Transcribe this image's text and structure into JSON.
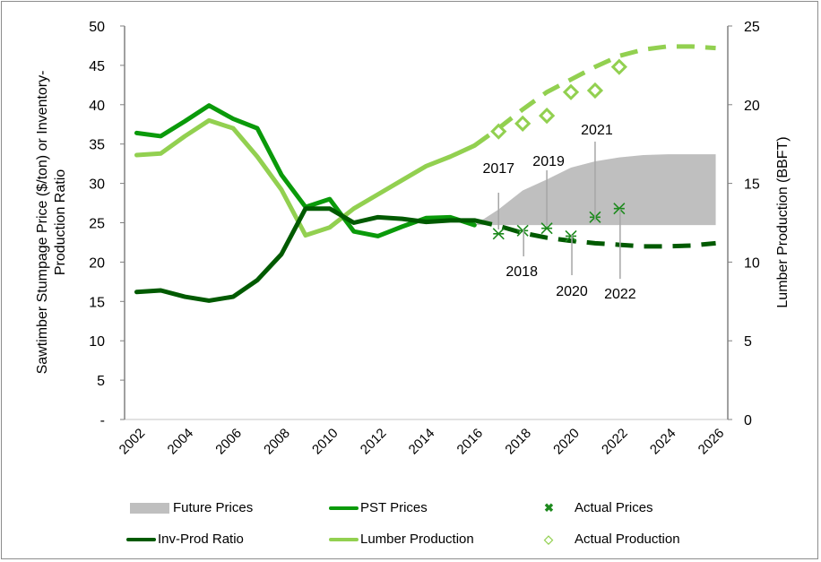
{
  "chart_data": {
    "type": "line",
    "categories": [
      2002,
      2003,
      2004,
      2005,
      2006,
      2007,
      2008,
      2009,
      2010,
      2011,
      2012,
      2013,
      2014,
      2015,
      2016,
      2017,
      2018,
      2019,
      2020,
      2021,
      2022,
      2023,
      2024,
      2025,
      2026
    ],
    "x_tick_labels": [
      "2002",
      "2004",
      "2006",
      "2008",
      "2010",
      "2012",
      "2014",
      "2016",
      "2018",
      "2020",
      "2022",
      "2024",
      "2026"
    ],
    "ylabel": "Sawtimber Stumpage Price ($/ton) or Inventory-Production Ratio",
    "ylabel_lines": [
      "Sawtimber Stumpage Price ($/ton) or Inventory-",
      "Production Ratio"
    ],
    "ylim": [
      0,
      50
    ],
    "y_ticks": [
      "-",
      "5",
      "10",
      "15",
      "20",
      "25",
      "30",
      "35",
      "40",
      "45",
      "50"
    ],
    "y2label": "Lumber Production (BBFT)",
    "y2lim": [
      0,
      25
    ],
    "y2_ticks": [
      "0",
      "5",
      "10",
      "15",
      "20",
      "25"
    ],
    "grid": false,
    "legend_position": "bottom",
    "series": [
      {
        "name": "Future Prices",
        "type": "area",
        "axis": "left",
        "color": "#bfbfbf",
        "x": [
          2016,
          2017,
          2018,
          2019,
          2020,
          2021,
          2022,
          2023,
          2024,
          2025,
          2026
        ],
        "low": [
          24.7,
          24.7,
          24.7,
          24.7,
          24.7,
          24.7,
          24.7,
          24.7,
          24.7,
          24.7,
          24.7
        ],
        "high": [
          24.7,
          26.7,
          29.1,
          30.5,
          32.0,
          32.8,
          33.3,
          33.6,
          33.7,
          33.7,
          33.7
        ]
      },
      {
        "name": "PST Prices",
        "type": "line",
        "axis": "left",
        "color": "#0a9a0a",
        "x": [
          2002,
          2003,
          2004,
          2005,
          2006,
          2007,
          2008,
          2009,
          2010,
          2011,
          2012,
          2013,
          2014,
          2015,
          2016
        ],
        "values": [
          36.4,
          36.0,
          37.9,
          39.9,
          38.2,
          37.0,
          31.1,
          27.0,
          28.0,
          23.9,
          23.3,
          24.5,
          25.6,
          25.7,
          24.7
        ]
      },
      {
        "name": "Inv-Prod Ratio",
        "type": "line",
        "axis": "left",
        "color": "#005a00",
        "x": [
          2002,
          2003,
          2004,
          2005,
          2006,
          2007,
          2008,
          2009,
          2010,
          2011,
          2012,
          2013,
          2014,
          2015,
          2016
        ],
        "values": [
          16.2,
          16.4,
          15.6,
          15.1,
          15.6,
          17.7,
          21.0,
          26.8,
          26.8,
          25.0,
          25.7,
          25.5,
          25.1,
          25.3,
          25.3
        ],
        "forecast_x": [
          2016,
          2017,
          2018,
          2019,
          2020,
          2021,
          2022,
          2023,
          2024,
          2025,
          2026
        ],
        "forecast_values": [
          25.3,
          24.6,
          23.7,
          23.1,
          22.7,
          22.4,
          22.2,
          22.0,
          22.0,
          22.1,
          22.4
        ]
      },
      {
        "name": "Lumber Production",
        "type": "line",
        "axis": "right",
        "color": "#92d050",
        "x": [
          2002,
          2003,
          2004,
          2005,
          2006,
          2007,
          2008,
          2009,
          2010,
          2011,
          2012,
          2013,
          2014,
          2015,
          2016
        ],
        "values": [
          16.8,
          16.9,
          18.0,
          19.0,
          18.5,
          16.7,
          14.6,
          11.7,
          12.2,
          13.4,
          14.3,
          15.2,
          16.1,
          16.7,
          17.4
        ],
        "forecast_x": [
          2016,
          2017,
          2018,
          2019,
          2020,
          2021,
          2022,
          2023,
          2024,
          2025,
          2026
        ],
        "forecast_values": [
          17.4,
          18.5,
          19.7,
          20.8,
          21.6,
          22.4,
          23.1,
          23.5,
          23.7,
          23.7,
          23.6
        ]
      },
      {
        "name": "Actual Prices",
        "type": "scatter",
        "axis": "left",
        "color": "#1e8a1e",
        "marker": "x-star",
        "x": [
          2017,
          2018,
          2019,
          2020,
          2021,
          2022
        ],
        "values": [
          23.6,
          24.0,
          24.3,
          23.3,
          25.7,
          26.8
        ]
      },
      {
        "name": "Actual Production",
        "type": "scatter",
        "axis": "right",
        "color": "#92d050",
        "marker": "diamond",
        "x": [
          2017,
          2018,
          2019,
          2020,
          2021,
          2022
        ],
        "values": [
          18.3,
          18.8,
          19.3,
          20.8,
          20.9,
          22.4
        ]
      }
    ],
    "annotations": [
      "2017",
      "2018",
      "2019",
      "2020",
      "2021",
      "2022"
    ]
  },
  "legend": {
    "items": [
      "Future Prices",
      "PST Prices",
      "Actual Prices",
      "Inv-Prod Ratio",
      "Lumber Production",
      "Actual Production"
    ]
  }
}
